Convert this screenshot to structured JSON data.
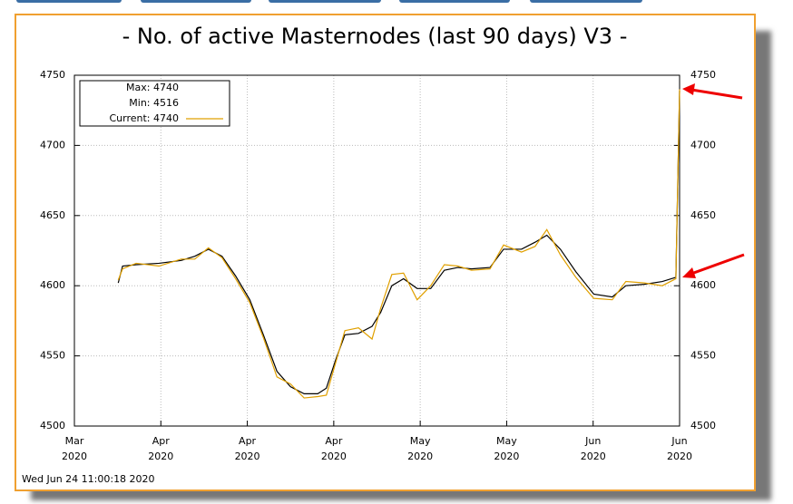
{
  "chart_data": {
    "type": "line",
    "title": "- No. of active Masternodes (last 90 days) V3 -",
    "timestamp": "Wed Jun 24 11:00:18 2020",
    "stats": [
      "Max: 4740",
      "Min: 4516"
    ],
    "x": [
      7.1,
      7.8,
      10.0,
      13.7,
      17.3,
      19.5,
      21.7,
      23.9,
      26.1,
      28.4,
      30.6,
      32.8,
      35.0,
      37.2,
      39.4,
      40.8,
      42.3,
      43.8,
      46.0,
      48.2,
      49.6,
      51.4,
      53.3,
      55.5,
      57.7,
      59.9,
      62.1,
      64.3,
      67.3,
      69.5,
      72.4,
      74.6,
      76.5,
      78.7,
      81.2,
      84.1,
      87.1,
      89.3,
      92.3,
      95.2,
      97.4,
      98.0
    ],
    "series": [
      {
        "name": "Current: 4740",
        "color": "#e0a000",
        "values": [
          4604,
          4612,
          4616,
          4614,
          4619,
          4619,
          4627,
          4620,
          4605,
          4588,
          4563,
          4535,
          4530,
          4520,
          4521,
          4522,
          4545,
          4568,
          4570,
          4562,
          4584,
          4608,
          4609,
          4590,
          4600,
          4615,
          4614,
          4611,
          4612,
          4629,
          4624,
          4628,
          4640,
          4622,
          4606,
          4591,
          4590,
          4603,
          4602,
          4600,
          4605,
          4740
        ]
      },
      {
        "color": "#000000",
        "values": [
          4602,
          4614,
          4615,
          4616,
          4618,
          4621,
          4626,
          4621,
          4607,
          4590,
          4565,
          4539,
          4528,
          4523,
          4523,
          4527,
          4547,
          4565,
          4566,
          4571,
          4581,
          4600,
          4605,
          4598,
          4598,
          4611,
          4613,
          4612,
          4613,
          4626,
          4626,
          4631,
          4636,
          4626,
          4610,
          4594,
          4592,
          4600,
          4601,
          4603,
          4606,
          4739
        ]
      }
    ],
    "xlim": [
      0,
      98
    ],
    "xticks": [
      {
        "value": 0,
        "label": "Mar 2020"
      },
      {
        "value": 14,
        "label": "Apr 2020"
      },
      {
        "value": 28,
        "label": "Apr 2020"
      },
      {
        "value": 42,
        "label": "Apr 2020"
      },
      {
        "value": 56,
        "label": "May 2020"
      },
      {
        "value": 70,
        "label": "May 2020"
      },
      {
        "value": 84,
        "label": "Jun 2020"
      },
      {
        "value": 98,
        "label": "Jun 2020"
      }
    ],
    "ylim": [
      4500,
      4750
    ],
    "yticks": [
      4500,
      4550,
      4600,
      4650,
      4700,
      4750
    ],
    "y2lim": [
      4500,
      4750
    ],
    "y2ticks": [
      4500,
      4550,
      4600,
      4650,
      4700,
      4750
    ],
    "grid": true
  }
}
